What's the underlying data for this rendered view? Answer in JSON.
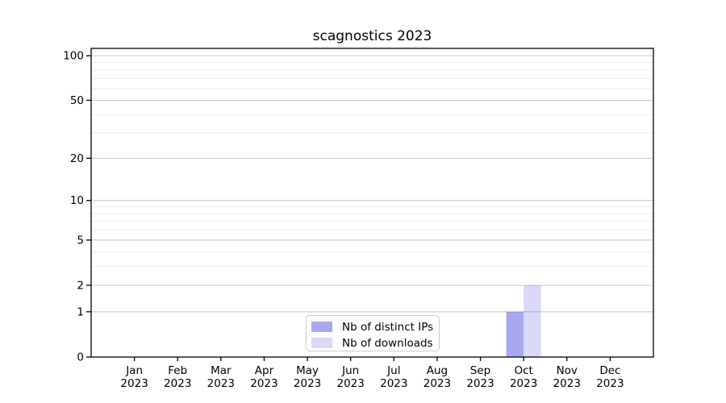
{
  "chart_data": {
    "type": "bar",
    "title": "scagnostics 2023",
    "categories": [
      "Jan",
      "Feb",
      "Mar",
      "Apr",
      "May",
      "Jun",
      "Jul",
      "Aug",
      "Sep",
      "Oct",
      "Nov",
      "Dec"
    ],
    "category_sublabel": "2023",
    "series": [
      {
        "name": "Nb of distinct IPs",
        "values": [
          0,
          0,
          0,
          0,
          0,
          0,
          0,
          0,
          0,
          1,
          0,
          0
        ],
        "fill": "rgba(0,0,215,0.34)"
      },
      {
        "name": "Nb of downloads",
        "values": [
          0,
          0,
          0,
          0,
          0,
          0,
          0,
          0,
          0,
          2,
          0,
          0
        ],
        "fill": "rgba(0,0,215,0.15)"
      }
    ],
    "y_axis": {
      "scale": "log1p",
      "ticks": [
        0,
        1,
        2,
        5,
        10,
        20,
        50,
        100
      ],
      "minor_ticks": [
        3,
        4,
        6,
        7,
        8,
        9,
        30,
        40,
        60,
        70,
        80,
        90
      ],
      "max": 112
    },
    "legend": {
      "position": "lower-center"
    },
    "grid": true,
    "colors": {
      "major_grid": "#c4c4c4",
      "minor_grid": "#ebebeb",
      "axis": "#000000",
      "text": "#000000",
      "background": "#ffffff"
    }
  }
}
